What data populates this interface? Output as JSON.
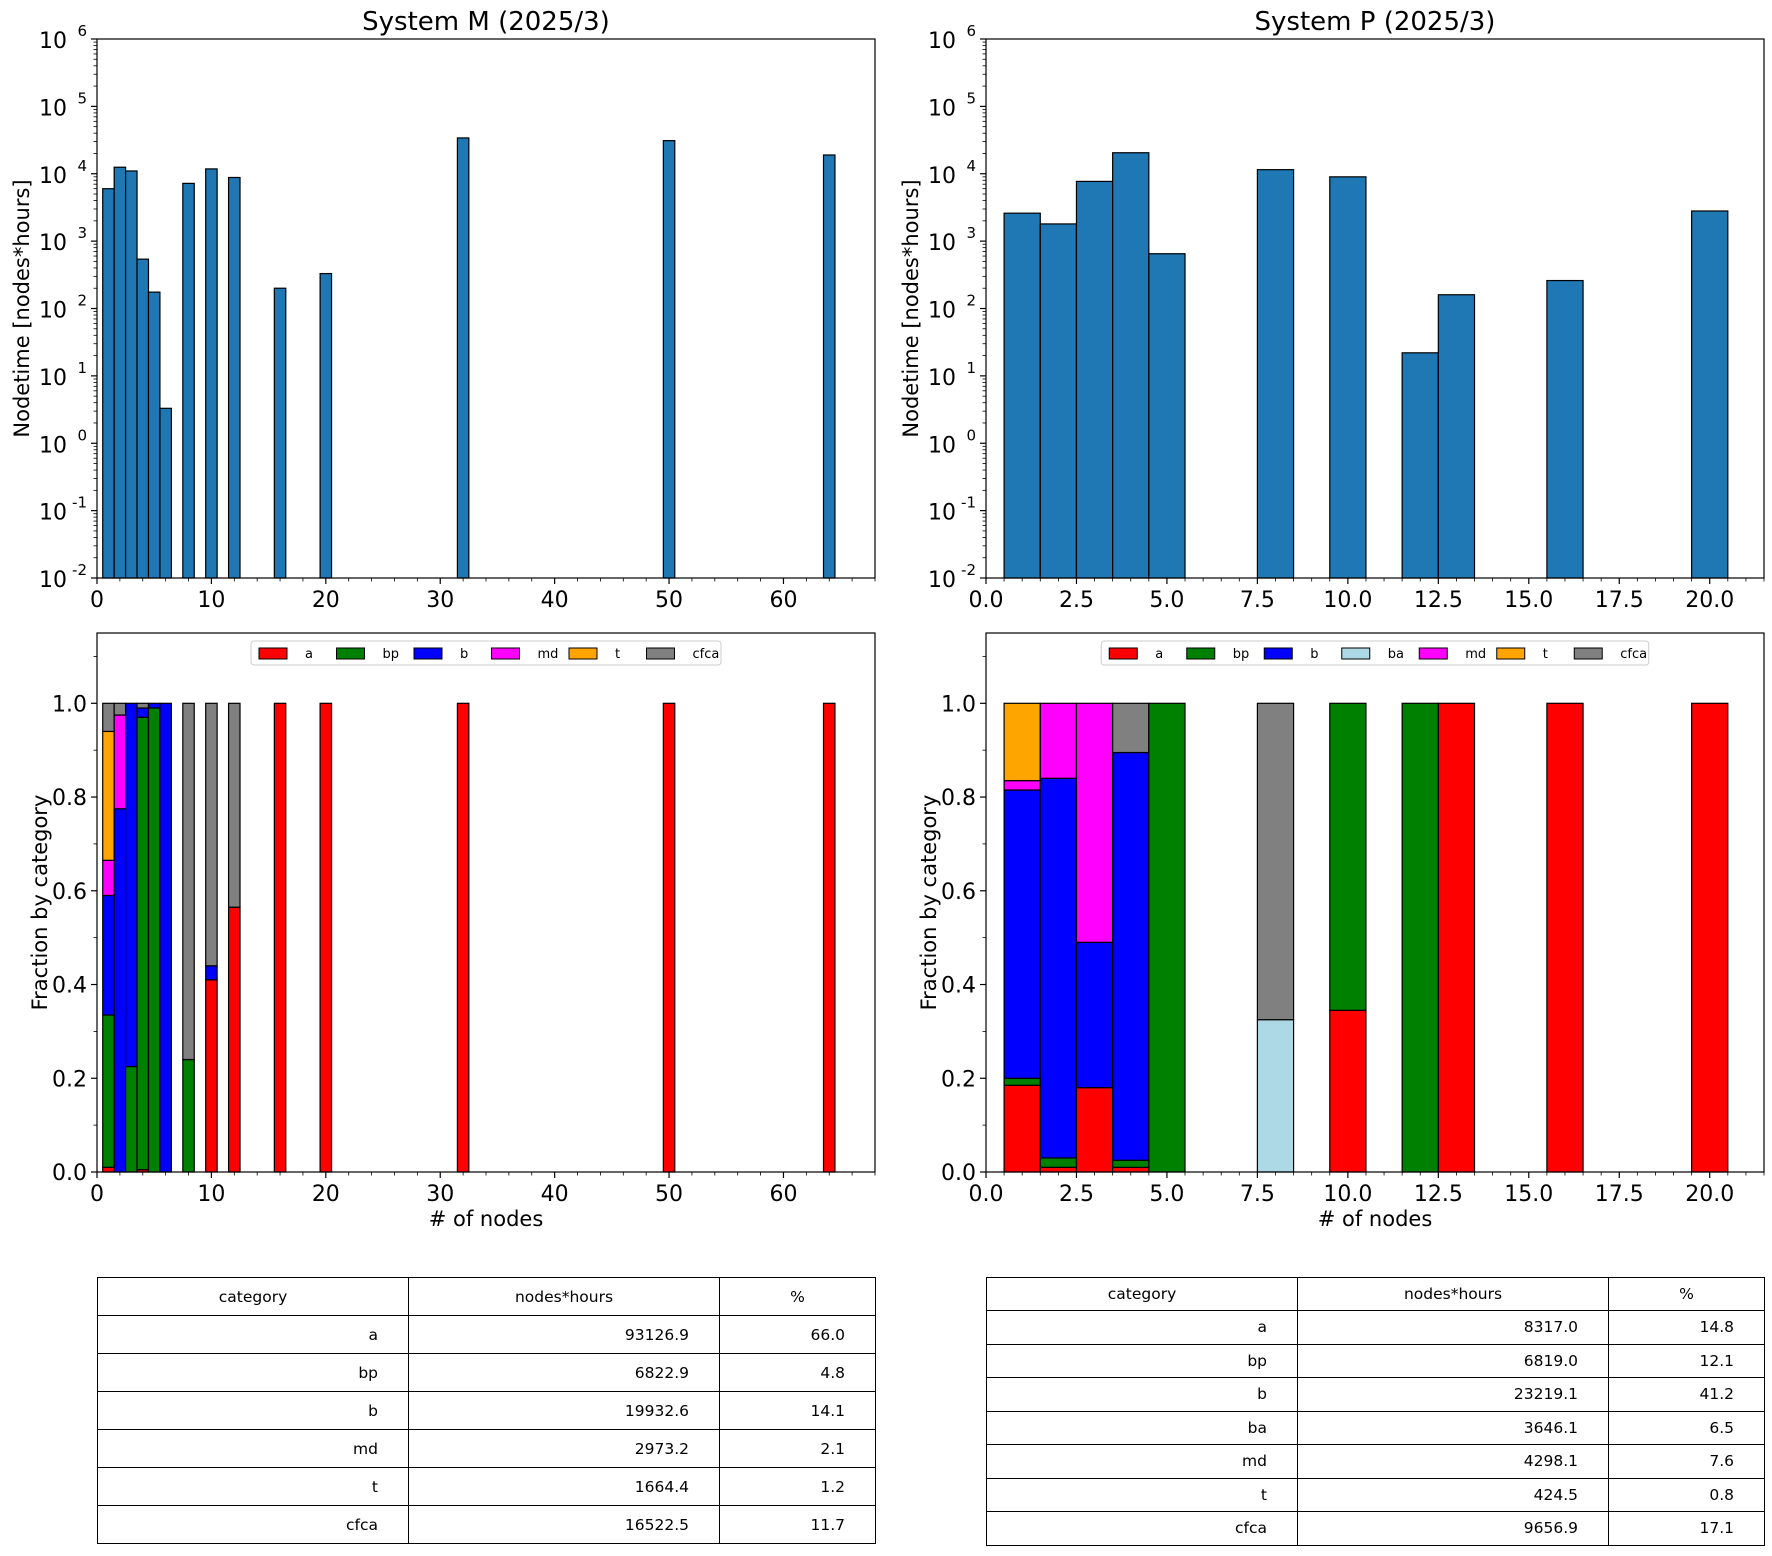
{
  "chart_data": [
    {
      "id": "m-hist",
      "type": "bar",
      "title": "System M (2025/3)",
      "ylabel": "Nodetime [nodes*hours]",
      "xlabel": "",
      "yscale": "log",
      "ylim": [
        0.01,
        1000000
      ],
      "xlim": [
        0,
        68
      ],
      "xticks": [
        "0",
        "10",
        "20",
        "30",
        "40",
        "50",
        "60"
      ],
      "yticks": [
        "10",
        "10",
        "10",
        "10",
        "10",
        "10",
        "10",
        "10",
        "10"
      ],
      "ytick_exponents": [
        "-2",
        "-1",
        "0",
        "1",
        "2",
        "3",
        "4",
        "5",
        "6"
      ],
      "bar_width": 1,
      "color": "#1f77b4",
      "x": [
        1,
        2,
        3,
        4,
        5,
        6,
        8,
        10,
        12,
        16,
        20,
        32,
        50,
        64
      ],
      "values": [
        6000,
        12500,
        11000,
        540,
        175,
        3.3,
        7200,
        11800,
        8800,
        200,
        330,
        34000,
        31000,
        19000
      ]
    },
    {
      "id": "p-hist",
      "type": "bar",
      "title": "System P (2025/3)",
      "ylabel": "Nodetime [nodes*hours]",
      "xlabel": "",
      "yscale": "log",
      "ylim": [
        0.01,
        1000000
      ],
      "xlim": [
        0,
        21.5
      ],
      "xticks": [
        "0.0",
        "2.5",
        "5.0",
        "7.5",
        "10.0",
        "12.5",
        "15.0",
        "17.5",
        "20.0"
      ],
      "yticks": [
        "10",
        "10",
        "10",
        "10",
        "10",
        "10",
        "10",
        "10",
        "10"
      ],
      "ytick_exponents": [
        "-2",
        "-1",
        "0",
        "1",
        "2",
        "3",
        "4",
        "5",
        "6"
      ],
      "bar_width": 1,
      "color": "#1f77b4",
      "x": [
        1,
        2,
        3,
        4,
        5,
        8,
        10,
        12,
        13,
        16,
        20
      ],
      "values": [
        2600,
        1800,
        7700,
        20500,
        650,
        11500,
        9000,
        22,
        160,
        260,
        2800
      ]
    },
    {
      "id": "m-frac",
      "type": "bar",
      "stacked": true,
      "title": "",
      "xlabel": "# of nodes",
      "ylabel": "Fraction by category",
      "ylim": [
        0,
        1.15
      ],
      "xlim": [
        0,
        68
      ],
      "xticks": [
        "0",
        "10",
        "20",
        "30",
        "40",
        "50",
        "60"
      ],
      "yticks": [
        "0.0",
        "0.2",
        "0.4",
        "0.6",
        "0.8",
        "1.0"
      ],
      "bar_width": 1,
      "legend_position": "top-center",
      "x": [
        1,
        2,
        3,
        4,
        5,
        6,
        8,
        10,
        12,
        16,
        20,
        32,
        50,
        64
      ],
      "series": [
        {
          "name": "a",
          "color": "#ff0000",
          "values": [
            0.01,
            0,
            0,
            0.005,
            0,
            0,
            0,
            0.41,
            0.565,
            1,
            1,
            1,
            1,
            1
          ]
        },
        {
          "name": "bp",
          "color": "#008000",
          "values": [
            0.325,
            0,
            0.225,
            0.965,
            0.99,
            0,
            0.24,
            0,
            0,
            0,
            0,
            0,
            0,
            0
          ]
        },
        {
          "name": "b",
          "color": "#0000ff",
          "values": [
            0.255,
            0.775,
            0.775,
            0.02,
            0.01,
            1,
            0,
            0.03,
            0,
            0,
            0,
            0,
            0,
            0
          ]
        },
        {
          "name": "md",
          "color": "#ff00ff",
          "values": [
            0.075,
            0.2,
            0,
            0,
            0,
            0,
            0,
            0,
            0,
            0,
            0,
            0,
            0,
            0
          ]
        },
        {
          "name": "t",
          "color": "#ffa500",
          "values": [
            0.275,
            0,
            0,
            0,
            0,
            0,
            0,
            0,
            0,
            0,
            0,
            0,
            0,
            0
          ]
        },
        {
          "name": "cfca",
          "color": "#808080",
          "values": [
            0.06,
            0.025,
            0,
            0.01,
            0,
            0,
            0.76,
            0.56,
            0.435,
            0,
            0,
            0,
            0,
            0
          ]
        }
      ]
    },
    {
      "id": "p-frac",
      "type": "bar",
      "stacked": true,
      "title": "",
      "xlabel": "# of nodes",
      "ylabel": "Fraction by category",
      "ylim": [
        0,
        1.15
      ],
      "xlim": [
        0,
        21.5
      ],
      "xticks": [
        "0.0",
        "2.5",
        "5.0",
        "7.5",
        "10.0",
        "12.5",
        "15.0",
        "17.5",
        "20.0"
      ],
      "yticks": [
        "0.0",
        "0.2",
        "0.4",
        "0.6",
        "0.8",
        "1.0"
      ],
      "bar_width": 1,
      "legend_position": "top-center",
      "x": [
        1,
        2,
        3,
        4,
        5,
        8,
        10,
        12,
        13,
        16,
        20
      ],
      "series": [
        {
          "name": "a",
          "color": "#ff0000",
          "values": [
            0.185,
            0.01,
            0.18,
            0.01,
            0,
            0,
            0.345,
            0,
            1,
            1,
            1
          ]
        },
        {
          "name": "bp",
          "color": "#008000",
          "values": [
            0.015,
            0.02,
            0,
            0.015,
            1,
            0,
            0.655,
            1,
            0,
            0,
            0
          ]
        },
        {
          "name": "b",
          "color": "#0000ff",
          "values": [
            0.615,
            0.81,
            0.31,
            0.87,
            0,
            0,
            0,
            0,
            0,
            0,
            0
          ]
        },
        {
          "name": "ba",
          "color": "#add8e6",
          "values": [
            0,
            0,
            0,
            0,
            0,
            0.325,
            0,
            0,
            0,
            0,
            0
          ]
        },
        {
          "name": "md",
          "color": "#ff00ff",
          "values": [
            0.02,
            0.16,
            0.51,
            0,
            0,
            0,
            0,
            0,
            0,
            0,
            0
          ]
        },
        {
          "name": "t",
          "color": "#ffa500",
          "values": [
            0.165,
            0,
            0,
            0,
            0,
            0,
            0,
            0,
            0,
            0,
            0
          ]
        },
        {
          "name": "cfca",
          "color": "#808080",
          "values": [
            0,
            0,
            0,
            0.105,
            0,
            0.675,
            0,
            0,
            0,
            0,
            0
          ]
        }
      ]
    }
  ],
  "tables": {
    "m": {
      "headers": [
        "category",
        "nodes*hours",
        "%"
      ],
      "rows": [
        [
          "a",
          "93126.9",
          "66.0"
        ],
        [
          "bp",
          "6822.9",
          "4.8"
        ],
        [
          "b",
          "19932.6",
          "14.1"
        ],
        [
          "md",
          "2973.2",
          "2.1"
        ],
        [
          "t",
          "1664.4",
          "1.2"
        ],
        [
          "cfca",
          "16522.5",
          "11.7"
        ]
      ]
    },
    "p": {
      "headers": [
        "category",
        "nodes*hours",
        "%"
      ],
      "rows": [
        [
          "a",
          "8317.0",
          "14.8"
        ],
        [
          "bp",
          "6819.0",
          "12.1"
        ],
        [
          "b",
          "23219.1",
          "41.2"
        ],
        [
          "ba",
          "3646.1",
          "6.5"
        ],
        [
          "md",
          "4298.1",
          "7.6"
        ],
        [
          "t",
          "424.5",
          "0.8"
        ],
        [
          "cfca",
          "9656.9",
          "17.1"
        ]
      ]
    }
  }
}
